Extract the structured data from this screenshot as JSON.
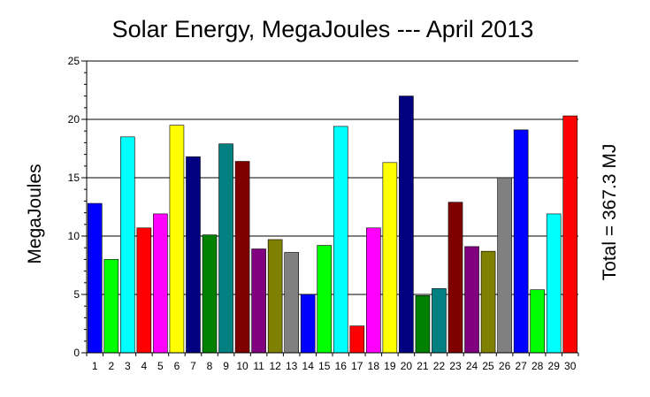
{
  "chart_data": {
    "type": "bar",
    "title": "Solar Energy, MegaJoules --- April 2013",
    "ylabel": "MegaJoules",
    "xlabel": "",
    "right_label": "Total = 367.3 MJ",
    "ylim": [
      0,
      25
    ],
    "yticks": [
      "0",
      "5",
      "10",
      "15",
      "20",
      "25"
    ],
    "grid": "horizontal",
    "categories": [
      "1",
      "2",
      "3",
      "4",
      "5",
      "6",
      "7",
      "8",
      "9",
      "10",
      "11",
      "12",
      "13",
      "14",
      "15",
      "16",
      "17",
      "18",
      "19",
      "20",
      "21",
      "22",
      "23",
      "24",
      "25",
      "26",
      "27",
      "28",
      "29",
      "30"
    ],
    "values": [
      12.8,
      8.0,
      18.5,
      10.7,
      11.9,
      19.5,
      16.8,
      10.1,
      17.9,
      16.4,
      8.9,
      9.7,
      8.6,
      5.0,
      9.2,
      19.4,
      2.3,
      10.7,
      16.3,
      22.0,
      4.9,
      5.5,
      12.9,
      9.1,
      8.7,
      15.0,
      19.1,
      5.4,
      11.9,
      20.3
    ],
    "colors": [
      "#0000ff",
      "#00ff00",
      "#00ffff",
      "#ff0000",
      "#ff00ff",
      "#ffff00",
      "#000080",
      "#008000",
      "#008080",
      "#800000",
      "#800080",
      "#808000",
      "#808080",
      "#0000ff",
      "#00ff00",
      "#00ffff",
      "#ff0000",
      "#ff00ff",
      "#ffff00",
      "#000080",
      "#008000",
      "#008080",
      "#800000",
      "#800080",
      "#808000",
      "#808080",
      "#0000ff",
      "#00ff00",
      "#00ffff",
      "#ff0000"
    ]
  }
}
